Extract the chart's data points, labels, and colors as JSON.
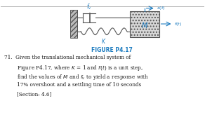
{
  "title_color": "#1a7abf",
  "text_color": "#1a1a1a",
  "accent_color": "#1a7abf",
  "line_color": "#555555",
  "wall_color": "#888888",
  "mass_hatch_color": "#888888",
  "figure_label": "FIGURE P4.17",
  "body_text_line1": "71.  Given the translational mechanical system of",
  "body_text_line2": "Figure P4.17, where $K$ = 1 and $f(t)$ is a unit step,",
  "body_text_line3": "find the values of $M$ and $f_v$ to yield a response with",
  "body_text_line4": "17% overshoot and a settling time of 10 seconds",
  "body_text_line5": "[Section: 4.6]"
}
